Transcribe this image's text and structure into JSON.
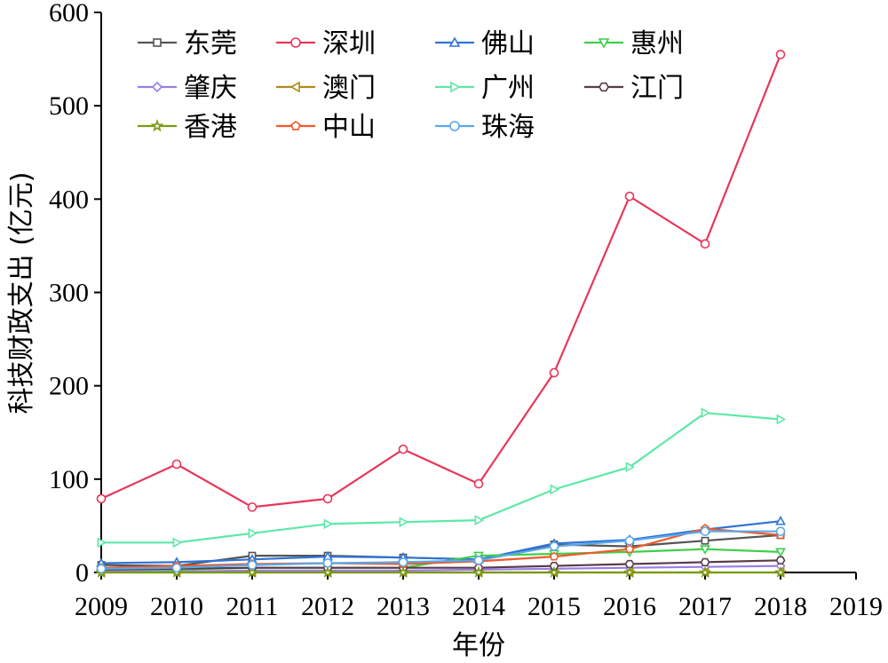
{
  "chart_data": {
    "type": "line",
    "xlabel": "年份",
    "ylabel": "科技财政支出 (亿元)",
    "xlim": [
      2009,
      2019
    ],
    "ylim": [
      0,
      600
    ],
    "x_ticks": [
      2009,
      2010,
      2011,
      2012,
      2013,
      2014,
      2015,
      2016,
      2017,
      2018,
      2019
    ],
    "y_ticks": [
      0,
      100,
      200,
      300,
      400,
      500,
      600
    ],
    "x": [
      2009,
      2010,
      2011,
      2012,
      2013,
      2014,
      2015,
      2016,
      2017,
      2018
    ],
    "legend_position": "top-left",
    "series": [
      {
        "name": "东莞",
        "color": "#555555",
        "marker": "square",
        "values": [
          8,
          7,
          18,
          18,
          16,
          14,
          30,
          28,
          34,
          40
        ]
      },
      {
        "name": "深圳",
        "color": "#e8365a",
        "marker": "circle",
        "values": [
          79,
          116,
          70,
          79,
          132,
          95,
          214,
          403,
          352,
          555
        ]
      },
      {
        "name": "佛山",
        "color": "#2f74d8",
        "marker": "triangle-up",
        "values": [
          10,
          11,
          14,
          17,
          16,
          14,
          31,
          35,
          46,
          55
        ]
      },
      {
        "name": "惠州",
        "color": "#3fce4a",
        "marker": "triangle-down",
        "values": [
          3,
          3,
          5,
          5,
          5,
          18,
          20,
          22,
          25,
          22
        ]
      },
      {
        "name": "肇庆",
        "color": "#9a7de8",
        "marker": "diamond",
        "values": [
          1,
          1,
          2,
          2,
          2,
          3,
          4,
          5,
          6,
          7
        ]
      },
      {
        "name": "澳门",
        "color": "#b08a1a",
        "marker": "triangle-left",
        "values": [
          0,
          0,
          0,
          0,
          0,
          0,
          0,
          0,
          0,
          0
        ]
      },
      {
        "name": "广州",
        "color": "#5de8a8",
        "marker": "triangle-right",
        "values": [
          32,
          32,
          42,
          52,
          54,
          56,
          89,
          113,
          171,
          164
        ]
      },
      {
        "name": "江门",
        "color": "#5a3a4a",
        "marker": "hexagon",
        "values": [
          3,
          4,
          5,
          5,
          5,
          5,
          7,
          9,
          11,
          13
        ]
      },
      {
        "name": "香港",
        "color": "#7a9a10",
        "marker": "star",
        "values": [
          0,
          0,
          0,
          0,
          0,
          0,
          0,
          0,
          0,
          0
        ]
      },
      {
        "name": "中山",
        "color": "#ef5a2a",
        "marker": "pentagon",
        "values": [
          5,
          7,
          9,
          10,
          9,
          12,
          17,
          25,
          47,
          40
        ]
      },
      {
        "name": "珠海",
        "color": "#5aa8e8",
        "marker": "circle",
        "values": [
          4,
          5,
          8,
          10,
          11,
          13,
          28,
          34,
          44,
          44
        ]
      }
    ]
  }
}
